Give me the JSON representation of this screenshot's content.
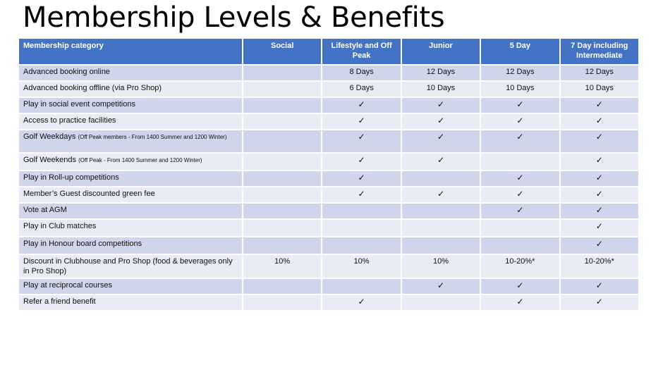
{
  "title": "Membership Levels & Benefits",
  "table": {
    "headers": [
      "Membership category",
      "Social",
      "Lifestyle and Off Peak",
      "Junior",
      "5 Day",
      "7 Day including Intermediate"
    ],
    "rows": [
      {
        "label": "Advanced booking online",
        "note": "",
        "values": [
          "",
          "8 Days",
          "12 Days",
          "12 Days",
          "12 Days"
        ]
      },
      {
        "label": "Advanced booking offline (via Pro Shop)",
        "note": "",
        "values": [
          "",
          "6 Days",
          "10 Days",
          "10 Days",
          "10 Days"
        ]
      },
      {
        "label": "Play in social event competitions",
        "note": "",
        "values": [
          "",
          "✓",
          "✓",
          "✓",
          "✓"
        ]
      },
      {
        "label": "Access to practice facilities",
        "note": "",
        "values": [
          "",
          "✓",
          "✓",
          "✓",
          "✓"
        ]
      },
      {
        "label": "Golf Weekdays",
        "note": "(Off Peak members - From 1400 Summer and 1200 Winter)",
        "values": [
          "",
          "✓",
          "✓",
          "✓",
          "✓"
        ]
      },
      {
        "label": "Golf Weekends",
        "note": "(Off Peak - From 1400 Summer and 1200 Winter)",
        "values": [
          "",
          "✓",
          "✓",
          "",
          "✓"
        ]
      },
      {
        "label": "Play in Roll-up competitions",
        "note": "",
        "values": [
          "",
          "✓",
          "",
          "✓",
          "✓"
        ]
      },
      {
        "label": "Member’s Guest discounted green fee",
        "note": "",
        "values": [
          "",
          "✓",
          "✓",
          "✓",
          "✓"
        ]
      },
      {
        "label": "Vote at AGM",
        "note": "",
        "values": [
          "",
          "",
          "",
          "✓",
          "✓"
        ]
      },
      {
        "label": "Play in Club matches",
        "note": "",
        "values": [
          "",
          "",
          "",
          "",
          "✓"
        ]
      },
      {
        "label": "Play in Honour board competitions",
        "note": "",
        "values": [
          "",
          "",
          "",
          "",
          "✓"
        ]
      },
      {
        "label": "Discount in Clubhouse and Pro Shop (food & beverages only in Pro Shop)",
        "note": "",
        "values": [
          "10%",
          "10%",
          "10%",
          "10-20%*",
          "10-20%*"
        ]
      },
      {
        "label": "Play at reciprocal courses",
        "note": "",
        "values": [
          "",
          "",
          "✓",
          "✓",
          "✓"
        ]
      },
      {
        "label": "Refer a friend benefit",
        "note": "",
        "values": [
          "",
          "✓",
          "",
          "✓",
          "✓"
        ]
      }
    ]
  },
  "colors": {
    "header_bg": "#4472c4",
    "row_odd_bg": "#cfd5ea",
    "row_even_bg": "#e9ebf5"
  }
}
